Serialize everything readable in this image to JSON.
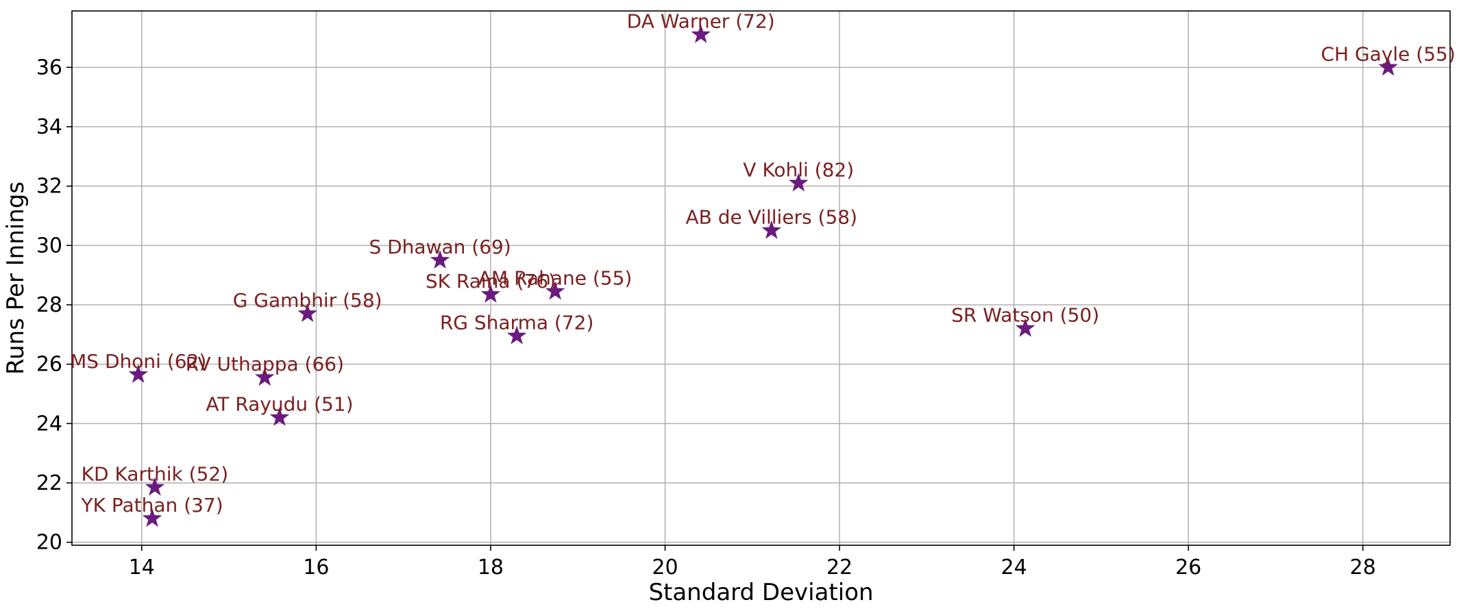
{
  "chart_data": {
    "type": "scatter",
    "title": "",
    "xlabel": "Standard Deviation",
    "ylabel": "Runs Per Innings",
    "xlim": [
      13.2,
      29.0
    ],
    "ylim": [
      19.9,
      37.9
    ],
    "xticks": [
      14,
      16,
      18,
      20,
      22,
      24,
      26,
      28
    ],
    "yticks": [
      20,
      22,
      24,
      26,
      28,
      30,
      32,
      34,
      36
    ],
    "grid": true,
    "marker": "star",
    "marker_color": "#6a1b7f",
    "label_color": "#7b2020",
    "points": [
      {
        "label": "DA Warner (72)",
        "x": 20.41,
        "y": 37.1
      },
      {
        "label": "CH Gayle (55)",
        "x": 28.29,
        "y": 36.0
      },
      {
        "label": "V Kohli (82)",
        "x": 21.53,
        "y": 32.1
      },
      {
        "label": "AB de Villiers (58)",
        "x": 21.22,
        "y": 30.5
      },
      {
        "label": "S Dhawan (69)",
        "x": 17.42,
        "y": 29.5
      },
      {
        "label": "SK Raina (76)",
        "x": 18.0,
        "y": 28.35
      },
      {
        "label": "AM Rahane (55)",
        "x": 18.74,
        "y": 28.45
      },
      {
        "label": "G Gambhir (58)",
        "x": 15.9,
        "y": 27.7
      },
      {
        "label": "RG Sharma (72)",
        "x": 18.3,
        "y": 26.95
      },
      {
        "label": "SR Watson (50)",
        "x": 24.13,
        "y": 27.2
      },
      {
        "label": "MS Dhoni (62)",
        "x": 13.96,
        "y": 25.65
      },
      {
        "label": "RV Uthappa (66)",
        "x": 15.41,
        "y": 25.55
      },
      {
        "label": "AT Rayudu (51)",
        "x": 15.58,
        "y": 24.2
      },
      {
        "label": "KD Karthik (52)",
        "x": 14.15,
        "y": 21.85
      },
      {
        "label": "YK Pathan (37)",
        "x": 14.12,
        "y": 20.8
      }
    ]
  }
}
